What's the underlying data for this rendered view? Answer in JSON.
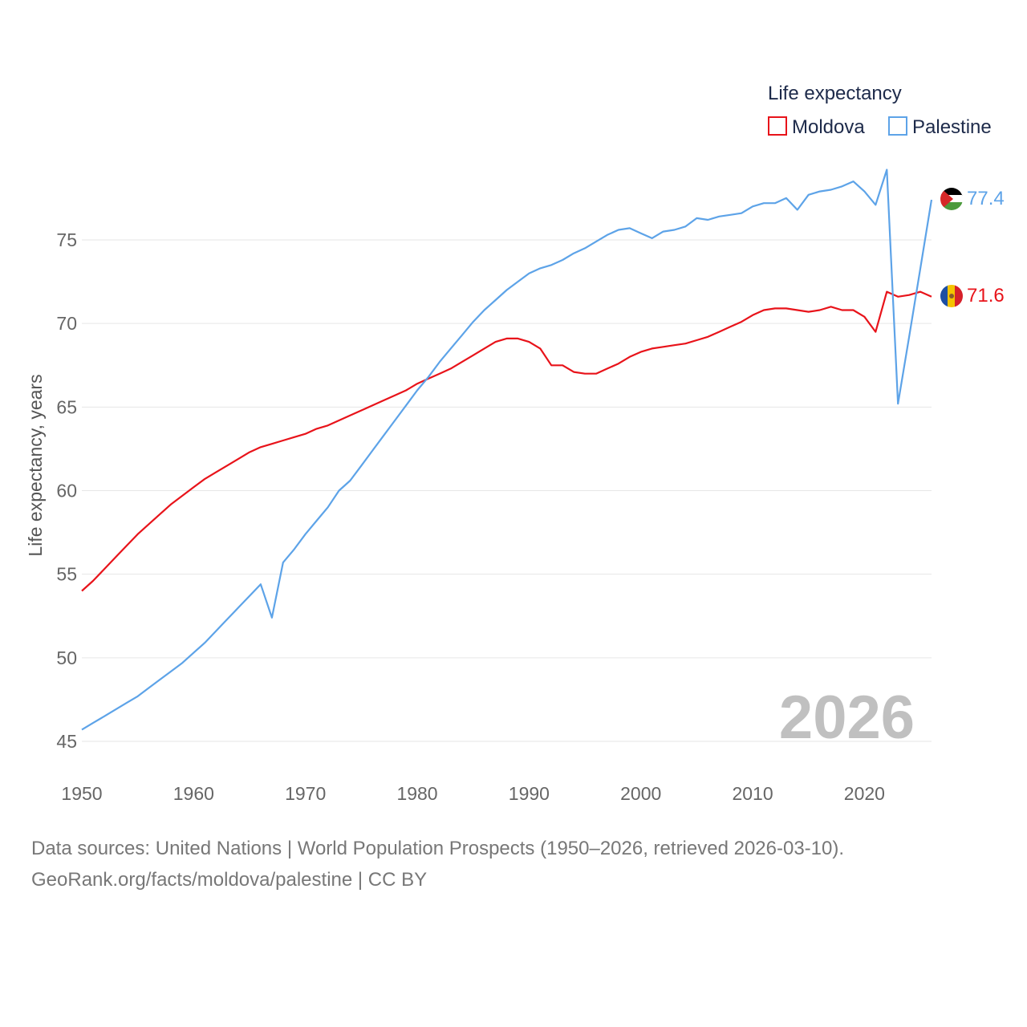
{
  "chart_data": {
    "type": "line",
    "legend_title": "Life expectancy",
    "ylabel": "Life expectancy, years",
    "xlabel": "",
    "xlim": [
      1950,
      2026
    ],
    "ylim": [
      45,
      78
    ],
    "x_ticks": [
      1950,
      1960,
      1970,
      1980,
      1990,
      2000,
      2010,
      2020
    ],
    "y_ticks": [
      45,
      50,
      55,
      60,
      65,
      70,
      75
    ],
    "current_year": "2026",
    "series": [
      {
        "name": "Moldova",
        "color": "#e8131a",
        "end_label": "71.6",
        "flag": "moldova-flag",
        "x": [
          1950,
          1951,
          1952,
          1953,
          1954,
          1955,
          1956,
          1957,
          1958,
          1959,
          1960,
          1961,
          1962,
          1963,
          1964,
          1965,
          1966,
          1967,
          1968,
          1969,
          1970,
          1971,
          1972,
          1973,
          1974,
          1975,
          1976,
          1977,
          1978,
          1979,
          1980,
          1981,
          1982,
          1983,
          1984,
          1985,
          1986,
          1987,
          1988,
          1989,
          1990,
          1991,
          1992,
          1993,
          1994,
          1995,
          1996,
          1997,
          1998,
          1999,
          2000,
          2001,
          2002,
          2003,
          2004,
          2005,
          2006,
          2007,
          2008,
          2009,
          2010,
          2011,
          2012,
          2013,
          2014,
          2015,
          2016,
          2017,
          2018,
          2019,
          2020,
          2021,
          2022,
          2023,
          2024,
          2025,
          2026
        ],
        "values": [
          54.0,
          54.6,
          55.3,
          56.0,
          56.7,
          57.4,
          58.0,
          58.6,
          59.2,
          59.7,
          60.2,
          60.7,
          61.1,
          61.5,
          61.9,
          62.3,
          62.6,
          62.8,
          63.0,
          63.2,
          63.4,
          63.7,
          63.9,
          64.2,
          64.5,
          64.8,
          65.1,
          65.4,
          65.7,
          66.0,
          66.4,
          66.7,
          67.0,
          67.3,
          67.7,
          68.1,
          68.5,
          68.9,
          69.1,
          69.1,
          68.9,
          68.5,
          67.5,
          67.5,
          67.1,
          67.0,
          67.0,
          67.3,
          67.6,
          68.0,
          68.3,
          68.5,
          68.6,
          68.7,
          68.8,
          69.0,
          69.2,
          69.5,
          69.8,
          70.1,
          70.5,
          70.8,
          70.9,
          70.9,
          70.8,
          70.7,
          70.8,
          71.0,
          70.8,
          70.8,
          70.4,
          69.5,
          71.9,
          71.6,
          71.7,
          71.9,
          71.6
        ]
      },
      {
        "name": "Palestine",
        "color": "#5da3e8",
        "end_label": "77.4",
        "flag": "palestine-flag",
        "x": [
          1950,
          1951,
          1952,
          1953,
          1954,
          1955,
          1956,
          1957,
          1958,
          1959,
          1960,
          1961,
          1962,
          1963,
          1964,
          1965,
          1966,
          1967,
          1968,
          1969,
          1970,
          1971,
          1972,
          1973,
          1974,
          1975,
          1976,
          1977,
          1978,
          1979,
          1980,
          1981,
          1982,
          1983,
          1984,
          1985,
          1986,
          1987,
          1988,
          1989,
          1990,
          1991,
          1992,
          1993,
          1994,
          1995,
          1996,
          1997,
          1998,
          1999,
          2000,
          2001,
          2002,
          2003,
          2004,
          2005,
          2006,
          2007,
          2008,
          2009,
          2010,
          2011,
          2012,
          2013,
          2014,
          2015,
          2016,
          2017,
          2018,
          2019,
          2020,
          2021,
          2022,
          2023,
          2024,
          2025,
          2026
        ],
        "values": [
          45.7,
          46.1,
          46.5,
          46.9,
          47.3,
          47.7,
          48.2,
          48.7,
          49.2,
          49.7,
          50.3,
          50.9,
          51.6,
          52.3,
          53.0,
          53.7,
          54.4,
          52.4,
          55.7,
          56.5,
          57.4,
          58.2,
          59.0,
          60.0,
          60.6,
          61.5,
          62.4,
          63.3,
          64.2,
          65.1,
          66.0,
          66.8,
          67.7,
          68.5,
          69.3,
          70.1,
          70.8,
          71.4,
          72.0,
          72.5,
          73.0,
          73.3,
          73.5,
          73.8,
          74.2,
          74.5,
          74.9,
          75.3,
          75.6,
          75.7,
          75.4,
          75.1,
          75.5,
          75.6,
          75.8,
          76.3,
          76.2,
          76.4,
          76.5,
          76.6,
          77.0,
          77.2,
          77.2,
          77.5,
          76.8,
          77.7,
          77.9,
          78.0,
          78.2,
          78.5,
          77.9,
          77.1,
          79.2,
          65.2,
          69.2,
          73.3,
          77.4
        ]
      }
    ]
  },
  "footer": {
    "source_line": "Data sources: United Nations | World Population Prospects (1950–2026, retrieved 2026-03-10).",
    "url_line": "GeoRank.org/facts/moldova/palestine | CC BY"
  }
}
